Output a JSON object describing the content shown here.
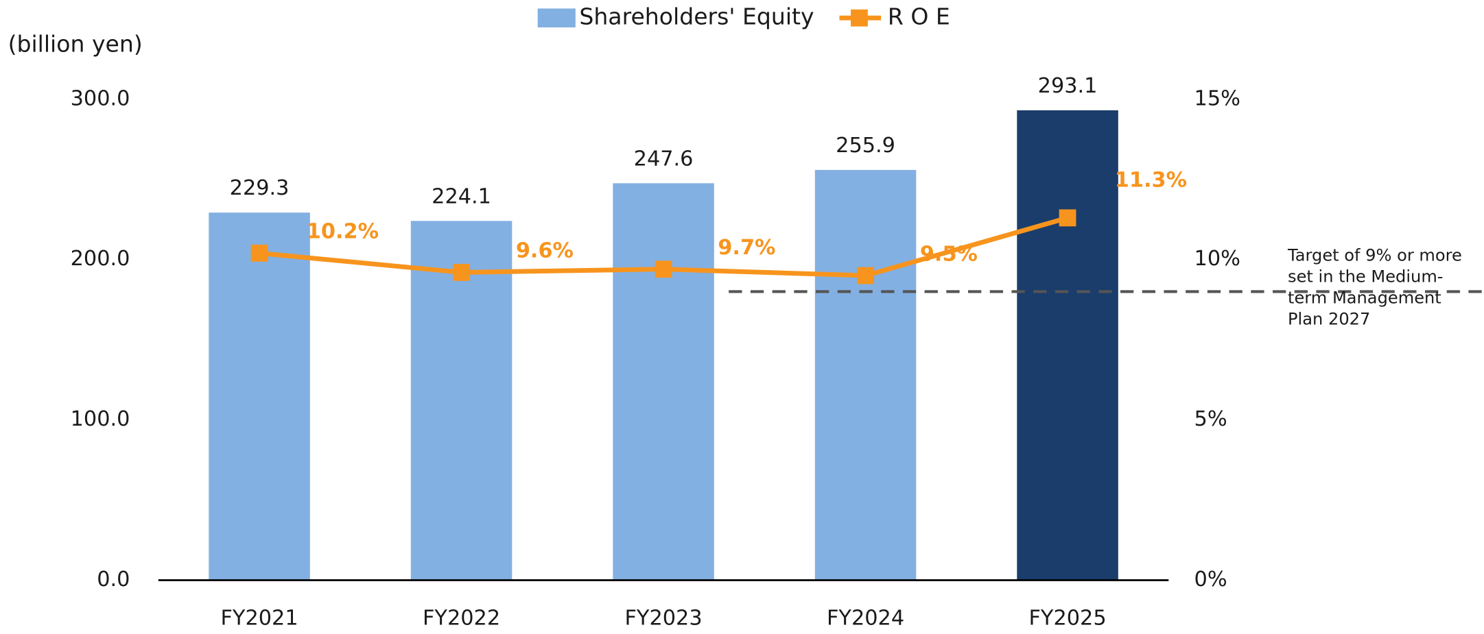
{
  "chart_data": {
    "type": "bar",
    "unit_label": "(billion yen)",
    "categories": [
      "FY2021",
      "FY2022",
      "FY2023",
      "FY2024",
      "FY2025"
    ],
    "series": [
      {
        "name": "Shareholders' Equity",
        "type": "bar",
        "color": "#83b0e2",
        "colors": [
          "#83b0e2",
          "#83b0e2",
          "#83b0e2",
          "#83b0e2",
          "#1a3d6b"
        ],
        "values": [
          229.3,
          224.1,
          247.6,
          255.9,
          293.1
        ]
      },
      {
        "name": "R O E",
        "type": "line",
        "axis": "y2",
        "color": "#f7941d",
        "values": [
          10.2,
          9.6,
          9.7,
          9.5,
          11.3
        ],
        "value_labels": [
          "10.2%",
          "9.6%",
          "9.7%",
          "9.5%",
          "11.3%"
        ]
      }
    ],
    "ylim": [
      0,
      300
    ],
    "yticks": [
      {
        "value": 0,
        "label": "0.0"
      },
      {
        "value": 100,
        "label": "100.0"
      },
      {
        "value": 200,
        "label": "200.0"
      },
      {
        "value": 300,
        "label": "300.0"
      }
    ],
    "y2lim": [
      0,
      15
    ],
    "y2ticks": [
      {
        "value": 0,
        "label": "0%"
      },
      {
        "value": 5,
        "label": "5%"
      },
      {
        "value": 10,
        "label": "10%"
      },
      {
        "value": 15,
        "label": "15%"
      }
    ],
    "target": {
      "value": 9,
      "lines": [
        "Target of 9% or more",
        "set in the Medium-",
        "term Management",
        "Plan 2027"
      ]
    },
    "legend": "top"
  }
}
